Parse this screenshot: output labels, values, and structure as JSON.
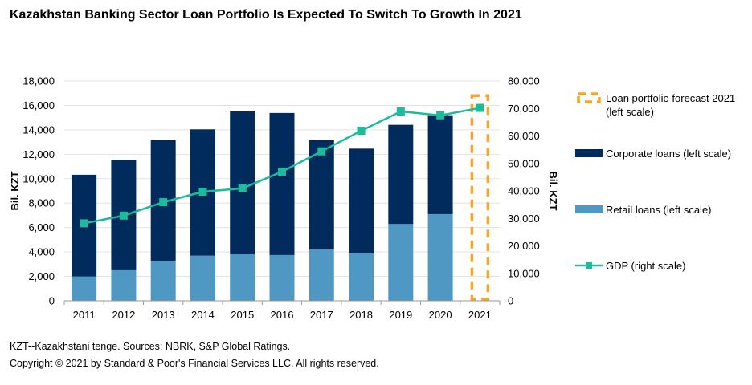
{
  "chart_data": {
    "type": "bar",
    "title": "Kazakhstan Banking Sector Loan Portfolio Is Expected To Switch To Growth In 2021",
    "categories": [
      "2011",
      "2012",
      "2013",
      "2014",
      "2015",
      "2016",
      "2017",
      "2018",
      "2019",
      "2020",
      "2021"
    ],
    "ylabel": "Bil. KZT",
    "y2label": "Bil. KZT",
    "ylim": [
      0,
      18000
    ],
    "y2lim": [
      0,
      80000
    ],
    "yticks": [
      "0",
      "2,000",
      "4,000",
      "6,000",
      "8,000",
      "10,000",
      "12,000",
      "14,000",
      "16,000",
      "18,000"
    ],
    "y2ticks": [
      "0",
      "10,000",
      "20,000",
      "30,000",
      "40,000",
      "50,000",
      "60,000",
      "70,000",
      "80,000"
    ],
    "grid": true,
    "legend_position": "right",
    "series": [
      {
        "name": "Loan portfolio forecast 2021 (left scale)",
        "type": "dashed-box",
        "color": "#F7A823",
        "values": [
          null,
          null,
          null,
          null,
          null,
          null,
          null,
          null,
          null,
          null,
          16800
        ]
      },
      {
        "name": "Corporate loans (left scale)",
        "type": "stacked-bar",
        "color": "#002B5C",
        "values": [
          8330,
          9040,
          9880,
          10340,
          11700,
          11630,
          8940,
          8580,
          8120,
          8100,
          null
        ]
      },
      {
        "name": "Retail loans (left scale)",
        "type": "stacked-bar",
        "color": "#4E98C3",
        "values": [
          1990,
          2500,
          3260,
          3700,
          3810,
          3750,
          4200,
          3880,
          6290,
          7100,
          null
        ]
      },
      {
        "name": "GDP (right scale)",
        "type": "line",
        "axis": "right",
        "color": "#1ABC9C",
        "values": [
          28200,
          31000,
          35900,
          39700,
          40900,
          47000,
          54400,
          61900,
          68900,
          67500,
          70200
        ]
      }
    ],
    "legend_labels": [
      [
        "Loan portfolio forecast 2021",
        "(left scale)"
      ],
      [
        "Corporate loans (left scale)"
      ],
      [
        "Retail loans (left scale)"
      ],
      [
        "GDP (right scale)"
      ]
    ]
  },
  "footnote": "KZT--Kazakhstani tenge. Sources: NBRK, S&P Global Ratings.",
  "copyright": "Copyright © 2021 by Standard & Poor's Financial Services LLC. All rights reserved."
}
